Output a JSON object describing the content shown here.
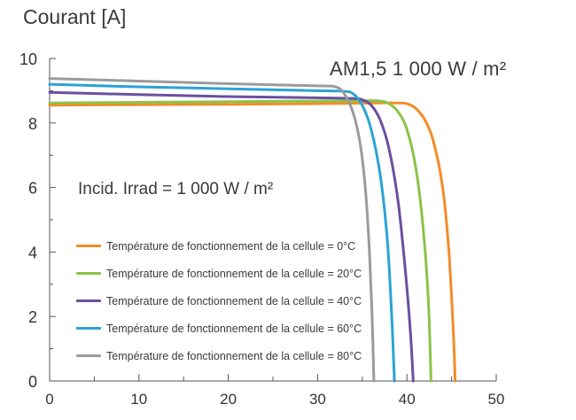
{
  "chart_data": {
    "type": "line",
    "ylabel": "Courant [A]",
    "xlabel": "",
    "annotation_top": "AM1,5 1 000 W / m²",
    "annotation_irradiance": "Incid. Irrad = 1 000 W / m²",
    "xlim": [
      0,
      50
    ],
    "ylim": [
      0,
      10
    ],
    "xticks": [
      "0",
      "10",
      "20",
      "30",
      "40",
      "50"
    ],
    "yticks": [
      "0",
      "2",
      "4",
      "6",
      "8",
      "10"
    ],
    "legend_placement": "lower-left",
    "series": [
      {
        "name": "Température de fonctionnement de la cellule = 0°C",
        "color": "#F28C28",
        "points": [
          [
            0,
            8.55
          ],
          [
            10,
            8.57
          ],
          [
            20,
            8.58
          ],
          [
            30,
            8.6
          ],
          [
            36,
            8.62
          ],
          [
            39,
            8.62
          ],
          [
            40,
            8.6
          ],
          [
            41,
            8.45
          ],
          [
            42,
            8.1
          ],
          [
            43,
            7.4
          ],
          [
            44,
            6.0
          ],
          [
            44.7,
            4.0
          ],
          [
            45.2,
            1.5
          ],
          [
            45.4,
            0
          ]
        ]
      },
      {
        "name": "Température de fonctionnement de la cellule = 20°C",
        "color": "#8BC34A",
        "points": [
          [
            0,
            8.62
          ],
          [
            10,
            8.64
          ],
          [
            20,
            8.66
          ],
          [
            30,
            8.68
          ],
          [
            35,
            8.69
          ],
          [
            37,
            8.68
          ],
          [
            38,
            8.6
          ],
          [
            39,
            8.35
          ],
          [
            40,
            7.8
          ],
          [
            41,
            6.6
          ],
          [
            41.8,
            4.8
          ],
          [
            42.4,
            2.5
          ],
          [
            42.7,
            0
          ]
        ]
      },
      {
        "name": "Température de fonctionnement de la cellule = 40°C",
        "color": "#6B4FA0",
        "points": [
          [
            0,
            8.95
          ],
          [
            10,
            8.88
          ],
          [
            20,
            8.82
          ],
          [
            30,
            8.78
          ],
          [
            34,
            8.76
          ],
          [
            35,
            8.72
          ],
          [
            36,
            8.55
          ],
          [
            37,
            8.1
          ],
          [
            38,
            7.2
          ],
          [
            39,
            5.6
          ],
          [
            39.8,
            3.5
          ],
          [
            40.4,
            1.5
          ],
          [
            40.7,
            0
          ]
        ]
      },
      {
        "name": "Température de fonctionnement de la cellule = 60°C",
        "color": "#2AA3D6",
        "points": [
          [
            0,
            9.2
          ],
          [
            10,
            9.12
          ],
          [
            20,
            9.06
          ],
          [
            30,
            9.0
          ],
          [
            33,
            8.98
          ],
          [
            34,
            8.9
          ],
          [
            35,
            8.55
          ],
          [
            36,
            7.8
          ],
          [
            37,
            6.4
          ],
          [
            37.8,
            4.4
          ],
          [
            38.3,
            2.0
          ],
          [
            38.6,
            0
          ]
        ]
      },
      {
        "name": "Température de fonctionnement de la cellule = 80°C",
        "color": "#9B9B9B",
        "points": [
          [
            0,
            9.38
          ],
          [
            10,
            9.3
          ],
          [
            20,
            9.22
          ],
          [
            30,
            9.15
          ],
          [
            32,
            9.12
          ],
          [
            33,
            8.9
          ],
          [
            34,
            8.3
          ],
          [
            34.8,
            7.3
          ],
          [
            35.4,
            5.8
          ],
          [
            35.8,
            4.0
          ],
          [
            36.1,
            2.0
          ],
          [
            36.3,
            0
          ]
        ]
      }
    ]
  }
}
